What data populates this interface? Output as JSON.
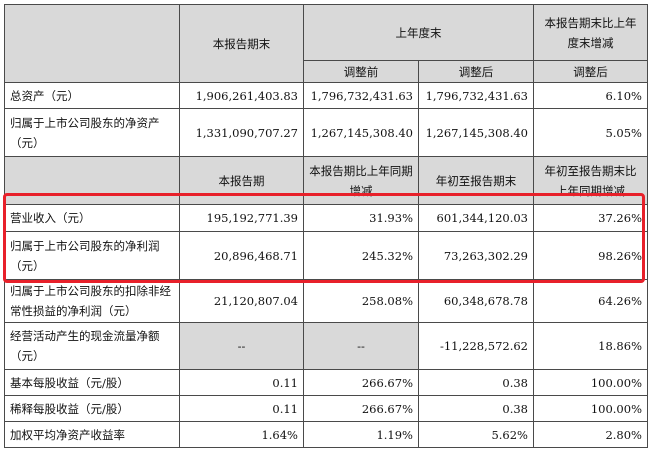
{
  "header": {
    "current_end": "本报告期末",
    "prev_year_end": "上年度末",
    "change_header": "本报告期末比上年度末增减",
    "before_adj": "调整前",
    "after_adj": "调整后",
    "after_adj2": "调整后"
  },
  "balance_rows": [
    {
      "label": "总资产（元）",
      "current": "1,906,261,403.83",
      "before": "1,796,732,431.63",
      "after": "1,796,732,431.63",
      "change": "6.10%"
    },
    {
      "label": "归属于上市公司股东的净资产（元）",
      "current": "1,331,090,707.27",
      "before": "1,267,145,308.40",
      "after": "1,267,145,308.40",
      "change": "5.05%"
    }
  ],
  "header2": {
    "current_period": "本报告期",
    "yoy_change": "本报告期比上年同期增减",
    "ytd": "年初至报告期末",
    "ytd_change": "年初至报告期末比上年同期增减"
  },
  "income_rows": [
    {
      "label": "营业收入（元）",
      "current": "195,192,771.39",
      "yoy": "31.93%",
      "ytd": "601,344,120.03",
      "ytd_change": "37.26%"
    },
    {
      "label": "归属于上市公司股东的净利润（元）",
      "current": "20,896,468.71",
      "yoy": "245.32%",
      "ytd": "73,263,302.29",
      "ytd_change": "98.26%"
    },
    {
      "label": "归属于上市公司股东的扣除非经常性损益的净利润（元）",
      "current": "21,120,807.04",
      "yoy": "258.08%",
      "ytd": "60,348,678.78",
      "ytd_change": "64.26%"
    },
    {
      "label": "经营活动产生的现金流量净额（元）",
      "current": "--",
      "yoy": "--",
      "ytd": "-11,228,572.62",
      "ytd_change": "18.86%"
    },
    {
      "label": "基本每股收益（元/股）",
      "current": "0.11",
      "yoy": "266.67%",
      "ytd": "0.38",
      "ytd_change": "100.00%"
    },
    {
      "label": "稀释每股收益（元/股）",
      "current": "0.11",
      "yoy": "266.67%",
      "ytd": "0.38",
      "ytd_change": "100.00%"
    },
    {
      "label": "加权平均净资产收益率",
      "current": "1.64%",
      "yoy": "1.19%",
      "ytd": "5.62%",
      "ytd_change": "2.80%"
    }
  ],
  "colors": {
    "header_bg": "#d9d9d9",
    "highlight": "#e8202a"
  }
}
